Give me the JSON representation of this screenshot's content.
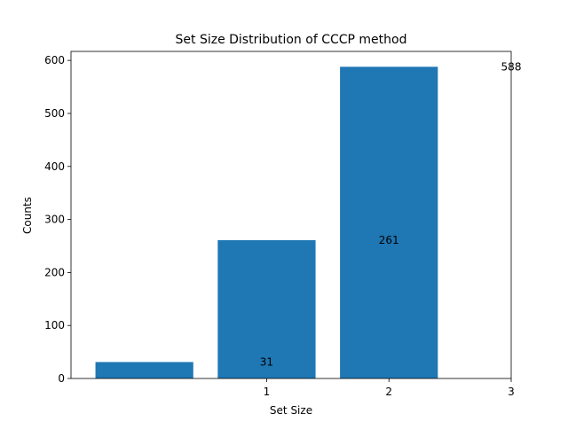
{
  "chart_data": {
    "type": "bar",
    "title": "Set Size Distribution of CCCP method",
    "xlabel": "Set Size",
    "ylabel": "Counts",
    "bars": [
      {
        "x": 0,
        "value": 31
      },
      {
        "x": 1,
        "value": 261
      },
      {
        "x": 2,
        "value": 588
      }
    ],
    "value_labels": [
      {
        "text": "31",
        "x": 1,
        "y": 31
      },
      {
        "text": "261",
        "x": 2,
        "y": 261
      },
      {
        "text": "588",
        "x": 3,
        "y": 588
      }
    ],
    "xticks": [
      1,
      2,
      3
    ],
    "yticks": [
      0,
      100,
      200,
      300,
      400,
      500,
      600
    ],
    "xlim": [
      -0.6,
      3.0
    ],
    "ylim": [
      0,
      617
    ],
    "grid": false,
    "legend": "none",
    "bar_color": "#1f77b4"
  }
}
